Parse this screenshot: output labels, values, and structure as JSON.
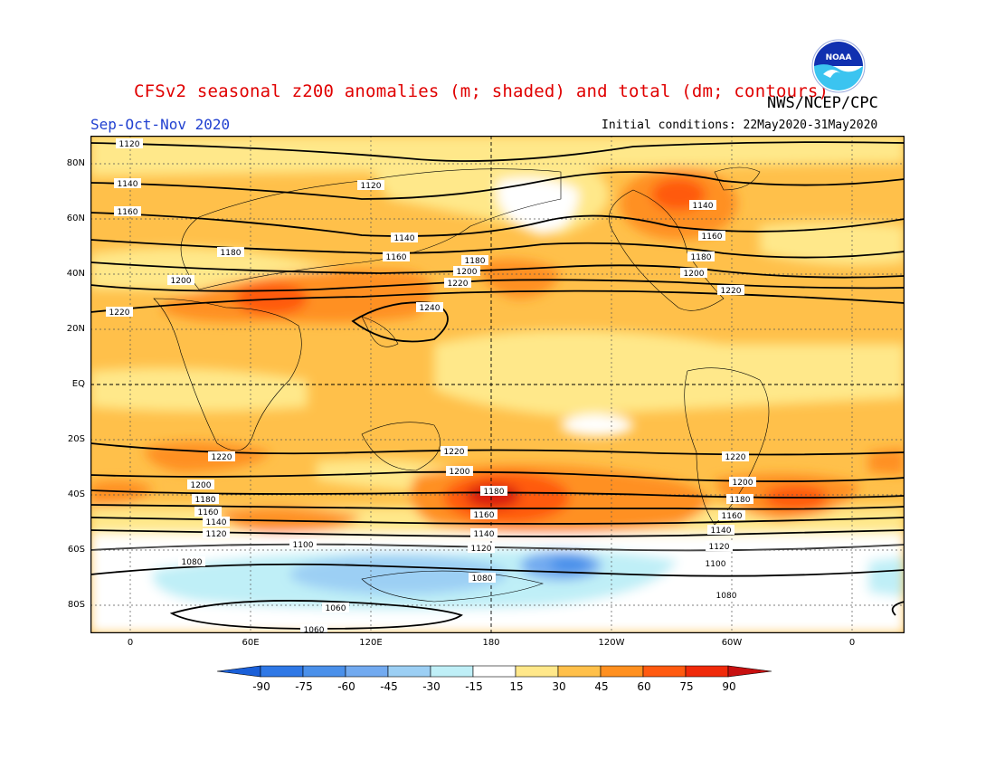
{
  "title": "CFSv2 seasonal z200 anomalies (m; shaded) and total (dm; contours)",
  "agency": "NWS/NCEP/CPC",
  "period": "Sep-Oct-Nov 2020",
  "initial_conditions": "Initial conditions: 22May2020-31May2020",
  "logo": {
    "text": "NOAA",
    "icon": "noaa-logo-icon"
  },
  "axes": {
    "lat_labels": [
      "80N",
      "60N",
      "40N",
      "20N",
      "EQ",
      "20S",
      "40S",
      "60S",
      "80S"
    ],
    "lon_labels": [
      "0",
      "60E",
      "120E",
      "180",
      "120W",
      "60W",
      "0"
    ]
  },
  "colorbar": {
    "labels": [
      "-90",
      "-75",
      "-60",
      "-45",
      "-30",
      "-15",
      "15",
      "30",
      "45",
      "60",
      "75",
      "90"
    ],
    "colors": [
      "#1a5fd8",
      "#2f78e6",
      "#4a90ea",
      "#72aaf0",
      "#9ccff4",
      "#bfeff7",
      "#ffffff",
      "#ffe88a",
      "#ffc04a",
      "#ff9020",
      "#ff5a10",
      "#f02a0a",
      "#c81010"
    ]
  },
  "contour_labels": [
    "1060",
    "1080",
    "1100",
    "1120",
    "1140",
    "1160",
    "1180",
    "1200",
    "1220",
    "1240"
  ]
}
